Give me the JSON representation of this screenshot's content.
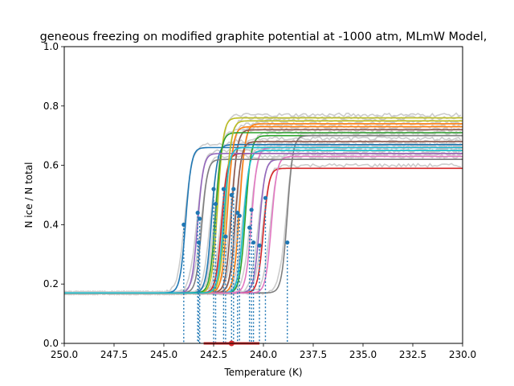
{
  "chart_data": {
    "type": "line",
    "title": "geneous freezing on modified graphite potential at -1000 atm, MLmW Model,",
    "xlabel": "Temperature (K)",
    "ylabel": "N ice / N total",
    "xlim": [
      250.0,
      230.0
    ],
    "ylim": [
      0.0,
      1.0
    ],
    "x_reversed": true,
    "grid": false,
    "x_ticks": [
      "250.0",
      "247.5",
      "245.0",
      "242.5",
      "240.0",
      "237.5",
      "235.0",
      "232.5",
      "230.0"
    ],
    "y_ticks": [
      "0.0",
      "0.2",
      "0.4",
      "0.6",
      "0.8",
      "1.0"
    ],
    "baseline": 0.17,
    "series": [
      {
        "color": "#1f77b4",
        "t_half": 243.9,
        "plateau": 0.66
      },
      {
        "color": "#ff7f0e",
        "t_half": 241.2,
        "plateau": 0.74
      },
      {
        "color": "#2ca02c",
        "t_half": 240.9,
        "plateau": 0.7
      },
      {
        "color": "#d62728",
        "t_half": 242.1,
        "plateau": 0.64
      },
      {
        "color": "#9467bd",
        "t_half": 240.2,
        "plateau": 0.62
      },
      {
        "color": "#8c564b",
        "t_half": 241.6,
        "plateau": 0.72
      },
      {
        "color": "#e377c2",
        "t_half": 240.6,
        "plateau": 0.66
      },
      {
        "color": "#7f7f7f",
        "t_half": 238.8,
        "plateau": 0.7
      },
      {
        "color": "#bcbd22",
        "t_half": 242.3,
        "plateau": 0.76
      },
      {
        "color": "#17becf",
        "t_half": 241.0,
        "plateau": 0.65
      },
      {
        "color": "#1f77b4",
        "t_half": 242.6,
        "plateau": 0.67
      },
      {
        "color": "#ff7f0e",
        "t_half": 241.8,
        "plateau": 0.73
      },
      {
        "color": "#2ca02c",
        "t_half": 242.4,
        "plateau": 0.71
      },
      {
        "color": "#d62728",
        "t_half": 240.0,
        "plateau": 0.59
      },
      {
        "color": "#9467bd",
        "t_half": 243.3,
        "plateau": 0.64
      },
      {
        "color": "#8c564b",
        "t_half": 241.4,
        "plateau": 0.68
      },
      {
        "color": "#e377c2",
        "t_half": 239.6,
        "plateau": 0.63
      },
      {
        "color": "#7f7f7f",
        "t_half": 243.1,
        "plateau": 0.62
      },
      {
        "color": "#bcbd22",
        "t_half": 241.9,
        "plateau": 0.75
      },
      {
        "color": "#17becf",
        "t_half": 242.0,
        "plateau": 0.66
      }
    ],
    "markers": [
      {
        "t": 244.0,
        "y": 0.4
      },
      {
        "t": 243.3,
        "y": 0.44
      },
      {
        "t": 243.2,
        "y": 0.42
      },
      {
        "t": 243.25,
        "y": 0.34
      },
      {
        "t": 242.5,
        "y": 0.52
      },
      {
        "t": 242.4,
        "y": 0.47
      },
      {
        "t": 242.0,
        "y": 0.52
      },
      {
        "t": 241.9,
        "y": 0.36
      },
      {
        "t": 241.6,
        "y": 0.5
      },
      {
        "t": 241.5,
        "y": 0.52
      },
      {
        "t": 241.3,
        "y": 0.44
      },
      {
        "t": 241.2,
        "y": 0.43
      },
      {
        "t": 240.7,
        "y": 0.39
      },
      {
        "t": 240.6,
        "y": 0.45
      },
      {
        "t": 240.5,
        "y": 0.34
      },
      {
        "t": 240.2,
        "y": 0.33
      },
      {
        "t": 239.9,
        "y": 0.49
      },
      {
        "t": 238.8,
        "y": 0.34
      }
    ],
    "mean_marker": {
      "t": 241.6,
      "y": 0.0,
      "color": "#d62728"
    },
    "mean_errorbar": [
      243.0,
      240.2
    ]
  }
}
